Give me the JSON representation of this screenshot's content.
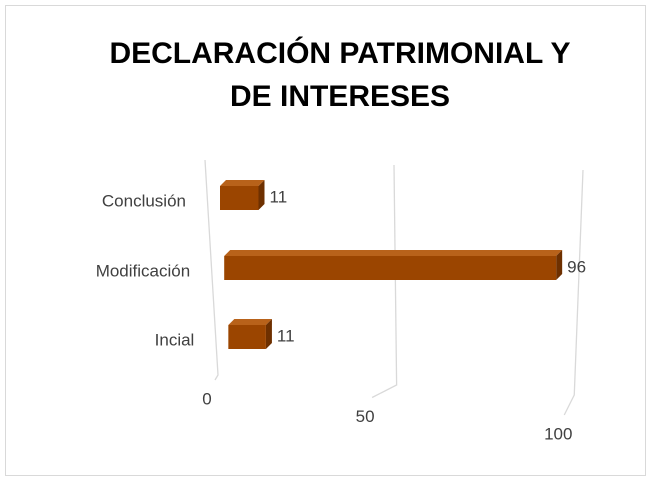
{
  "chart_data": {
    "type": "bar3d",
    "orientation": "horizontal",
    "title": "DECLARACIÓN PATRIMONIAL Y DE INTERESES",
    "categories": [
      "Conclusión",
      "Modificación",
      "Incial"
    ],
    "values": [
      11,
      96,
      11
    ],
    "color": "#9b4500",
    "xlim": [
      0,
      100
    ],
    "xticks": [
      0,
      50,
      100
    ],
    "grid": true
  }
}
